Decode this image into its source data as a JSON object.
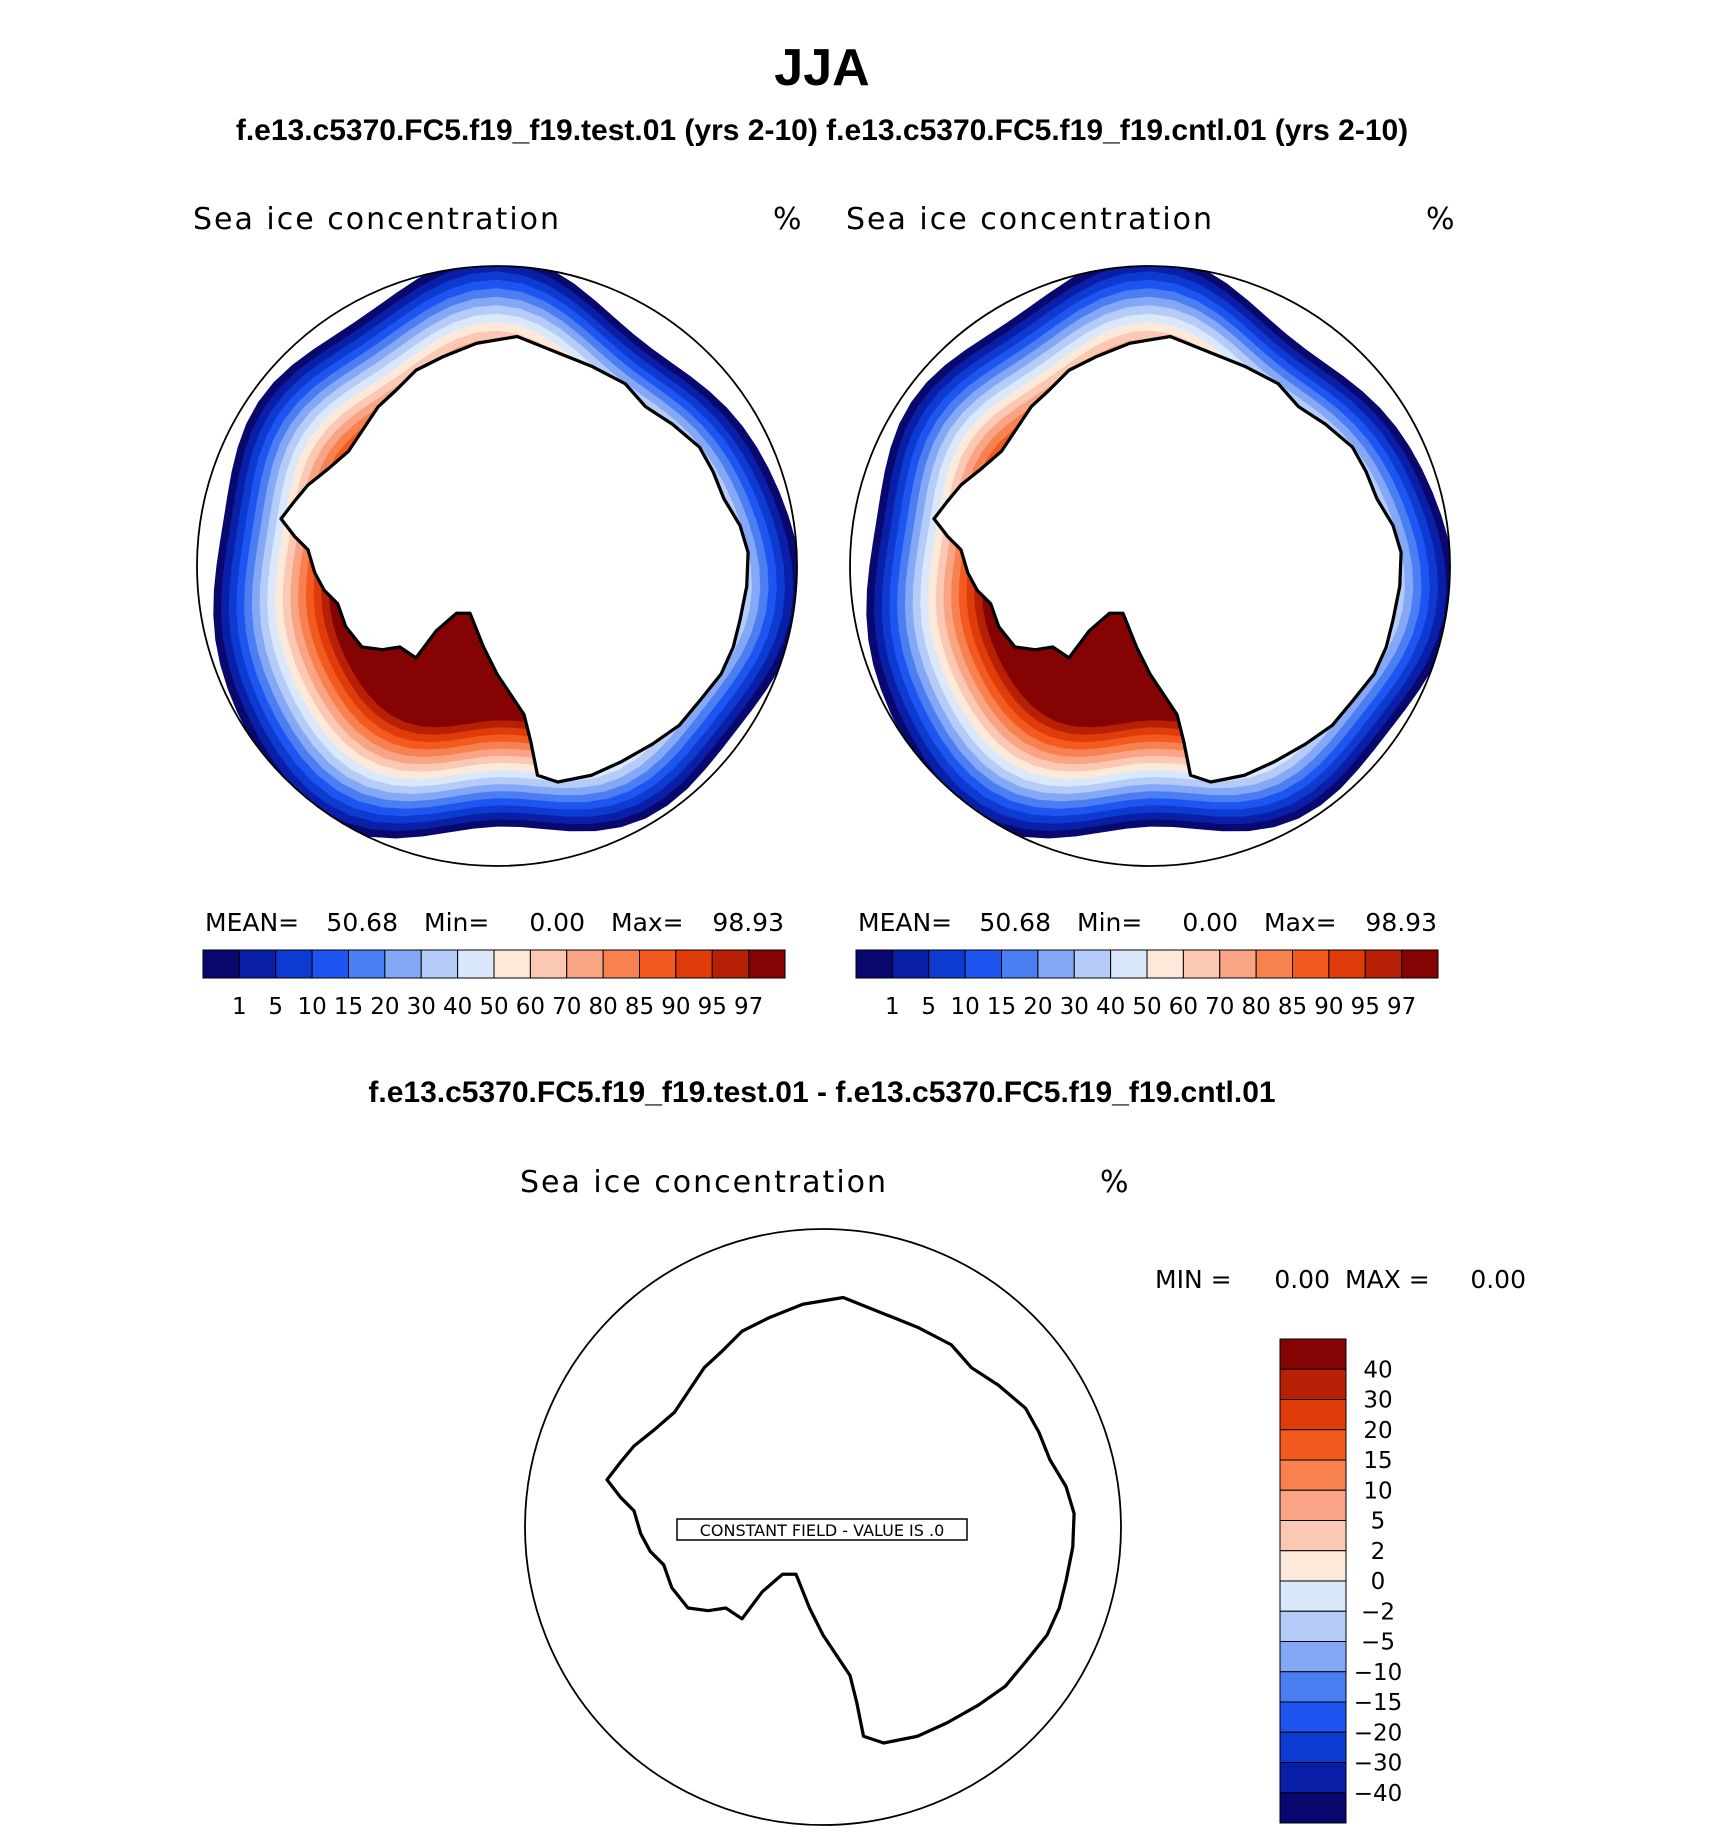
{
  "header": {
    "title": "JJA",
    "subtitle": "f.e13.c5370.FC5.f19_f19.test.01 (yrs 2-10) f.e13.c5370.FC5.f19_f19.cntl.01 (yrs 2-10)"
  },
  "panels": [
    {
      "variable": "Sea ice concentration",
      "units": "%",
      "stats": {
        "mean_label": "MEAN=",
        "mean": "50.68",
        "min_label": "Min=",
        "min": "0.00",
        "max_label": "Max=",
        "max": "98.93"
      },
      "colorbar": {
        "labels": [
          "1",
          "5",
          "10",
          "15",
          "20",
          "30",
          "40",
          "50",
          "60",
          "70",
          "80",
          "85",
          "90",
          "95",
          "97"
        ]
      }
    },
    {
      "variable": "Sea ice concentration",
      "units": "%",
      "stats": {
        "mean_label": "MEAN=",
        "mean": "50.68",
        "min_label": "Min=",
        "min": "0.00",
        "max_label": "Max=",
        "max": "98.93"
      },
      "colorbar": {
        "labels": [
          "1",
          "5",
          "10",
          "15",
          "20",
          "30",
          "40",
          "50",
          "60",
          "70",
          "80",
          "85",
          "90",
          "95",
          "97"
        ]
      }
    }
  ],
  "difference": {
    "title": "f.e13.c5370.FC5.f19_f19.test.01 - f.e13.c5370.FC5.f19_f19.cntl.01",
    "variable": "Sea ice concentration",
    "units": "%",
    "stats": {
      "min_label": "MIN =",
      "min": "0.00",
      "max_label": "MAX =",
      "max": "0.00"
    },
    "constant_field": "CONSTANT FIELD - VALUE IS .0",
    "colorbar": {
      "labels": [
        "40",
        "30",
        "20",
        "15",
        "10",
        "5",
        "2",
        "0",
        "−2",
        "−5",
        "−10",
        "−15",
        "−20",
        "−30",
        "−40"
      ]
    }
  },
  "colors": {
    "abs_scale": [
      "#08086e",
      "#0a1fa8",
      "#0d3ad0",
      "#1e55f0",
      "#4a7ef2",
      "#84a8f5",
      "#b5ccf8",
      "#d9e8fb",
      "#fde9da",
      "#fbc8b4",
      "#f9a585",
      "#f7824f",
      "#f35a20",
      "#e03c0a",
      "#b82006",
      "#850303"
    ],
    "diff_scale": [
      "#850303",
      "#b82006",
      "#e03c0a",
      "#f35a20",
      "#f7824f",
      "#f9a585",
      "#fbc8b4",
      "#fde9da",
      "#d9e8fb",
      "#b5ccf8",
      "#84a8f5",
      "#4a7ef2",
      "#1e55f0",
      "#0d3ad0",
      "#0a1fa8",
      "#08086e"
    ]
  }
}
